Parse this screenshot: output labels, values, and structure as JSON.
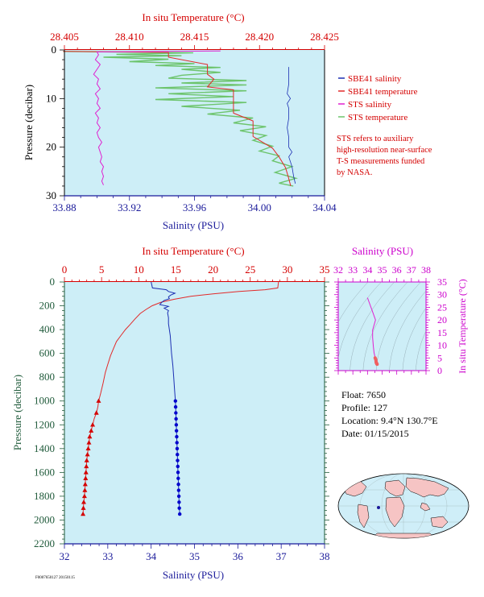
{
  "colors": {
    "plot_bg": "#cdeef7",
    "sbe_salinity": "#1c2fb3",
    "sbe_temperature": "#e22a2a",
    "sts_salinity": "#e020d0",
    "sts_temperature": "#6cc46c",
    "red_axis": "#d40000",
    "blue_axis": "#1a1a9a",
    "magenta_axis": "#cc00cc",
    "green_axis": "#1f5a3a"
  },
  "legend": {
    "items": [
      {
        "label": "SBE41 salinity",
        "color": "#1c2fb3"
      },
      {
        "label": "SBE41 temperature",
        "color": "#e22a2a"
      },
      {
        "label": "STS salinity",
        "color": "#e020d0"
      },
      {
        "label": "STS temperature",
        "color": "#6cc46c"
      }
    ],
    "note": [
      "STS refers to auxiliary",
      "high-resolution near-surface",
      "T-S measurements funded",
      "by NASA."
    ]
  },
  "float_info": {
    "float": "Float:  7650",
    "profile": "Profile:  127",
    "location": "Location:  9.4°N  130.7°E",
    "date": "Date:  01/15/2015"
  },
  "footer_code": "F0007650127 20150115",
  "chart_data": [
    {
      "type": "line",
      "name": "near-surface profile",
      "top_axis_label": "In situ Temperature (°C)",
      "top_ticks": [
        "28.405",
        "28.410",
        "28.415",
        "28.420",
        "28.425"
      ],
      "top_range": [
        28.405,
        28.425
      ],
      "bottom_axis_label": "Salinity (PSU)",
      "bottom_ticks": [
        "33.88",
        "33.92",
        "33.96",
        "34.00",
        "34.04"
      ],
      "bottom_range": [
        33.88,
        34.04
      ],
      "ylabel": "Pressure (decibar)",
      "y_ticks": [
        "0",
        "10",
        "20",
        "30"
      ],
      "yrange": [
        0,
        30
      ],
      "y_inverted": true,
      "sts_temperature": [
        [
          28.4049,
          0.3
        ],
        [
          28.4149,
          0.6
        ],
        [
          28.409,
          0.9
        ],
        [
          28.414,
          1.2
        ],
        [
          28.408,
          1.5
        ],
        [
          28.413,
          1.9
        ],
        [
          28.41,
          2.4
        ],
        [
          28.415,
          2.8
        ],
        [
          28.412,
          3.2
        ],
        [
          28.417,
          3.6
        ],
        [
          28.414,
          4.0
        ],
        [
          28.417,
          4.6
        ],
        [
          28.414,
          5.2
        ],
        [
          28.413,
          5.8
        ],
        [
          28.419,
          6.3
        ],
        [
          28.414,
          6.8
        ],
        [
          28.419,
          7.2
        ],
        [
          28.412,
          7.8
        ],
        [
          28.419,
          8.4
        ],
        [
          28.413,
          9.0
        ],
        [
          28.418,
          9.6
        ],
        [
          28.412,
          10.2
        ],
        [
          28.419,
          10.8
        ],
        [
          28.414,
          11.6
        ],
        [
          28.4185,
          12.4
        ],
        [
          28.416,
          13.2
        ],
        [
          28.4195,
          14.0
        ],
        [
          28.418,
          15.0
        ],
        [
          28.4205,
          15.8
        ],
        [
          28.4185,
          16.6
        ],
        [
          28.4205,
          17.6
        ],
        [
          28.4195,
          18.6
        ],
        [
          28.421,
          19.8
        ],
        [
          28.42,
          20.8
        ],
        [
          28.4215,
          21.8
        ],
        [
          28.421,
          22.8
        ],
        [
          28.4225,
          24.0
        ],
        [
          28.4212,
          25.2
        ],
        [
          28.4228,
          26.4
        ],
        [
          28.4215,
          27.4
        ],
        [
          28.4226,
          28.0
        ]
      ],
      "sbe_temperature": [
        [
          28.4049,
          0.3
        ],
        [
          28.413,
          0.5
        ],
        [
          28.413,
          1.5
        ],
        [
          28.416,
          3.0
        ],
        [
          28.416,
          5.0
        ],
        [
          28.4165,
          6.0
        ],
        [
          28.416,
          7.6
        ],
        [
          28.418,
          8.2
        ],
        [
          28.418,
          13.0
        ],
        [
          28.4195,
          14.6
        ],
        [
          28.4195,
          17.8
        ],
        [
          28.421,
          20.2
        ],
        [
          28.4215,
          22.0
        ],
        [
          28.422,
          24.2
        ],
        [
          28.4222,
          26.0
        ],
        [
          28.4224,
          28.0
        ]
      ],
      "sts_salinity": [
        [
          33.976,
          0.2
        ],
        [
          33.9,
          0.4
        ],
        [
          33.901,
          1
        ],
        [
          33.899,
          2
        ],
        [
          33.902,
          3
        ],
        [
          33.9,
          4
        ],
        [
          33.898,
          5
        ],
        [
          33.901,
          6
        ],
        [
          33.9,
          7
        ],
        [
          33.902,
          8
        ],
        [
          33.899,
          9
        ],
        [
          33.901,
          10
        ],
        [
          33.9,
          11
        ],
        [
          33.902,
          12
        ],
        [
          33.899,
          13
        ],
        [
          33.901,
          14
        ],
        [
          33.9,
          15
        ],
        [
          33.902,
          16
        ],
        [
          33.9,
          17
        ],
        [
          33.901,
          18
        ],
        [
          33.903,
          19
        ],
        [
          33.901,
          20
        ],
        [
          33.902,
          21
        ],
        [
          33.903,
          22
        ],
        [
          33.902,
          23
        ],
        [
          33.904,
          24
        ],
        [
          33.903,
          25
        ],
        [
          33.904,
          26
        ],
        [
          33.903,
          27
        ],
        [
          33.904,
          27.8
        ]
      ],
      "sbe_salinity": [
        [
          34.018,
          3.5
        ],
        [
          34.018,
          7
        ],
        [
          34.017,
          9
        ],
        [
          34.019,
          10
        ],
        [
          34.017,
          11
        ],
        [
          34.018,
          12
        ],
        [
          34.018,
          14
        ],
        [
          34.017,
          16
        ],
        [
          34.018,
          18
        ],
        [
          34.018,
          20
        ],
        [
          34.02,
          21
        ],
        [
          34.018,
          22
        ],
        [
          34.02,
          24
        ],
        [
          34.021,
          26
        ],
        [
          34.022,
          27.5
        ]
      ]
    },
    {
      "type": "line",
      "name": "full profile",
      "top_axis_label": "In situ Temperature (°C)",
      "top_ticks": [
        "0",
        "5",
        "10",
        "15",
        "20",
        "25",
        "30",
        "35"
      ],
      "top_range": [
        0,
        35
      ],
      "bottom_axis_label": "Salinity (PSU)",
      "bottom_ticks": [
        "32",
        "33",
        "34",
        "35",
        "36",
        "37",
        "38"
      ],
      "bottom_range": [
        32,
        38
      ],
      "ylabel": "Pressure (decibar)",
      "y_ticks": [
        "0",
        "200",
        "400",
        "600",
        "800",
        "1000",
        "1200",
        "1400",
        "1600",
        "1800",
        "2000",
        "2200"
      ],
      "yrange": [
        0,
        2200
      ],
      "y_inverted": true,
      "temperature": [
        [
          28.8,
          0
        ],
        [
          28.7,
          50
        ],
        [
          27.0,
          65
        ],
        [
          23.5,
          80
        ],
        [
          20.0,
          100
        ],
        [
          17.0,
          120
        ],
        [
          14.8,
          145
        ],
        [
          13.0,
          170
        ],
        [
          11.8,
          200
        ],
        [
          11.0,
          230
        ],
        [
          10.2,
          265
        ],
        [
          9.5,
          310
        ],
        [
          8.8,
          360
        ],
        [
          8.2,
          400
        ],
        [
          7.6,
          450
        ],
        [
          7.0,
          500
        ],
        [
          6.6,
          560
        ],
        [
          6.2,
          620
        ],
        [
          5.8,
          700
        ],
        [
          5.5,
          760
        ],
        [
          5.2,
          850
        ],
        [
          4.9,
          930
        ],
        [
          4.6,
          1000
        ],
        [
          4.5,
          1050
        ],
        [
          4.3,
          1100
        ],
        [
          4.0,
          1150
        ],
        [
          3.8,
          1200
        ],
        [
          3.6,
          1250
        ],
        [
          3.4,
          1300
        ],
        [
          3.3,
          1350
        ],
        [
          3.2,
          1400
        ],
        [
          3.1,
          1450
        ],
        [
          3.0,
          1500
        ],
        [
          2.95,
          1550
        ],
        [
          2.9,
          1600
        ],
        [
          2.85,
          1650
        ],
        [
          2.8,
          1700
        ],
        [
          2.75,
          1750
        ],
        [
          2.7,
          1800
        ],
        [
          2.6,
          1850
        ],
        [
          2.55,
          1900
        ],
        [
          2.5,
          1950
        ]
      ],
      "temperature_bottles": [
        [
          4.6,
          1000
        ],
        [
          4.3,
          1100
        ],
        [
          3.8,
          1200
        ],
        [
          3.6,
          1250
        ],
        [
          3.4,
          1300
        ],
        [
          3.3,
          1350
        ],
        [
          3.2,
          1400
        ],
        [
          3.1,
          1450
        ],
        [
          3.0,
          1500
        ],
        [
          2.95,
          1550
        ],
        [
          2.9,
          1600
        ],
        [
          2.85,
          1650
        ],
        [
          2.8,
          1700
        ],
        [
          2.75,
          1750
        ],
        [
          2.7,
          1800
        ],
        [
          2.6,
          1850
        ],
        [
          2.55,
          1900
        ],
        [
          2.5,
          1950
        ]
      ],
      "salinity": [
        [
          34.0,
          0
        ],
        [
          34.03,
          50
        ],
        [
          34.35,
          65
        ],
        [
          34.4,
          80
        ],
        [
          34.55,
          95
        ],
        [
          34.45,
          110
        ],
        [
          34.4,
          125
        ],
        [
          34.42,
          140
        ],
        [
          34.3,
          155
        ],
        [
          34.25,
          170
        ],
        [
          34.2,
          190
        ],
        [
          34.4,
          205
        ],
        [
          34.3,
          220
        ],
        [
          34.4,
          240
        ],
        [
          34.38,
          260
        ],
        [
          34.4,
          300
        ],
        [
          34.4,
          350
        ],
        [
          34.42,
          400
        ],
        [
          34.44,
          450
        ],
        [
          34.45,
          500
        ],
        [
          34.47,
          600
        ],
        [
          34.5,
          700
        ],
        [
          34.52,
          800
        ],
        [
          34.54,
          900
        ],
        [
          34.56,
          1000
        ],
        [
          34.57,
          1100
        ],
        [
          34.58,
          1200
        ],
        [
          34.59,
          1300
        ],
        [
          34.6,
          1400
        ],
        [
          34.61,
          1500
        ],
        [
          34.62,
          1600
        ],
        [
          34.63,
          1700
        ],
        [
          34.64,
          1800
        ],
        [
          34.65,
          1900
        ],
        [
          34.66,
          1950
        ]
      ],
      "salinity_bottles": [
        [
          34.56,
          1000
        ],
        [
          34.565,
          1050
        ],
        [
          34.57,
          1100
        ],
        [
          34.575,
          1150
        ],
        [
          34.58,
          1200
        ],
        [
          34.585,
          1250
        ],
        [
          34.59,
          1300
        ],
        [
          34.595,
          1350
        ],
        [
          34.6,
          1400
        ],
        [
          34.605,
          1450
        ],
        [
          34.61,
          1500
        ],
        [
          34.615,
          1550
        ],
        [
          34.62,
          1600
        ],
        [
          34.625,
          1650
        ],
        [
          34.63,
          1700
        ],
        [
          34.635,
          1750
        ],
        [
          34.64,
          1800
        ],
        [
          34.645,
          1850
        ],
        [
          34.65,
          1900
        ],
        [
          34.66,
          1950
        ]
      ]
    },
    {
      "type": "scatter",
      "name": "T-S diagram",
      "xlabel": "Salinity (PSU)",
      "x_ticks": [
        "32",
        "33",
        "34",
        "35",
        "36",
        "37",
        "38"
      ],
      "xrange": [
        32,
        38
      ],
      "ylabel": "In situ Temperature (°C)",
      "y_ticks": [
        "0",
        "5",
        "10",
        "15",
        "20",
        "25",
        "30",
        "35"
      ],
      "yrange": [
        0,
        35
      ],
      "grid": false,
      "ts_curve": [
        [
          34.0,
          28.8
        ],
        [
          34.3,
          24.0
        ],
        [
          34.55,
          20.0
        ],
        [
          34.35,
          16.0
        ],
        [
          34.35,
          13.0
        ],
        [
          34.4,
          9.5
        ],
        [
          34.45,
          7.0
        ],
        [
          34.5,
          5.8
        ],
        [
          34.55,
          4.6
        ],
        [
          34.58,
          3.8
        ],
        [
          34.62,
          2.9
        ],
        [
          34.66,
          2.5
        ]
      ],
      "ts_points": [
        [
          34.52,
          5.0
        ],
        [
          34.55,
          4.6
        ],
        [
          34.57,
          4.3
        ],
        [
          34.58,
          3.8
        ],
        [
          34.59,
          3.4
        ],
        [
          34.6,
          3.2
        ],
        [
          34.61,
          3.0
        ],
        [
          34.62,
          2.9
        ],
        [
          34.63,
          2.8
        ],
        [
          34.64,
          2.7
        ],
        [
          34.65,
          2.6
        ],
        [
          34.66,
          2.5
        ]
      ]
    }
  ]
}
